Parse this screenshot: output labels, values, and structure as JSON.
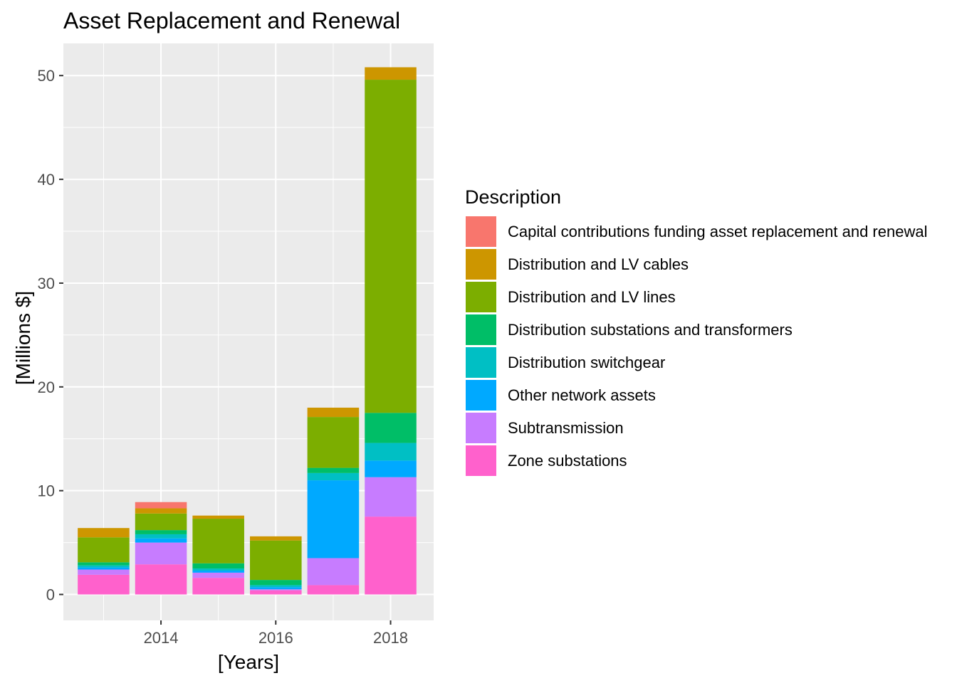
{
  "chart_data": {
    "type": "bar",
    "stacked": true,
    "title": "Asset Replacement and Renewal",
    "xlabel": "[Years]",
    "ylabel": "[Millions $]",
    "x": [
      2013,
      2014,
      2015,
      2016,
      2017,
      2018
    ],
    "xticks": [
      2014,
      2016,
      2018
    ],
    "yticks": [
      0,
      10,
      20,
      30,
      40,
      50
    ],
    "xlim": [
      2012.3,
      2018.75
    ],
    "ylim": [
      -2.5,
      53.1
    ],
    "grid": true,
    "legend": {
      "title": "Description",
      "position": "right"
    },
    "series": [
      {
        "name": "Zone substations",
        "color": "#FF61CC",
        "values": [
          1.9,
          2.9,
          1.6,
          0.4,
          0.9,
          7.5
        ]
      },
      {
        "name": "Subtransmission",
        "color": "#C77CFF",
        "values": [
          0.5,
          2.1,
          0.5,
          0.1,
          2.6,
          3.8
        ]
      },
      {
        "name": "Other network assets",
        "color": "#00A9FF",
        "values": [
          0.2,
          0.4,
          0.2,
          0.2,
          7.5,
          1.6
        ]
      },
      {
        "name": "Distribution switchgear",
        "color": "#00BFC4",
        "values": [
          0.2,
          0.4,
          0.2,
          0.2,
          0.7,
          1.7
        ]
      },
      {
        "name": "Distribution substations and transformers",
        "color": "#00BE67",
        "values": [
          0.3,
          0.4,
          0.5,
          0.5,
          0.5,
          2.9
        ]
      },
      {
        "name": "Distribution and LV lines",
        "color": "#7CAE00",
        "values": [
          2.4,
          1.6,
          4.3,
          3.8,
          4.9,
          32.1
        ]
      },
      {
        "name": "Distribution and LV cables",
        "color": "#CD9600",
        "values": [
          0.9,
          0.5,
          0.3,
          0.4,
          0.9,
          1.2
        ]
      },
      {
        "name": "Capital contributions funding asset replacement and renewal",
        "color": "#F8766D",
        "values": [
          0,
          0.6,
          0,
          0,
          0,
          0
        ]
      }
    ]
  }
}
